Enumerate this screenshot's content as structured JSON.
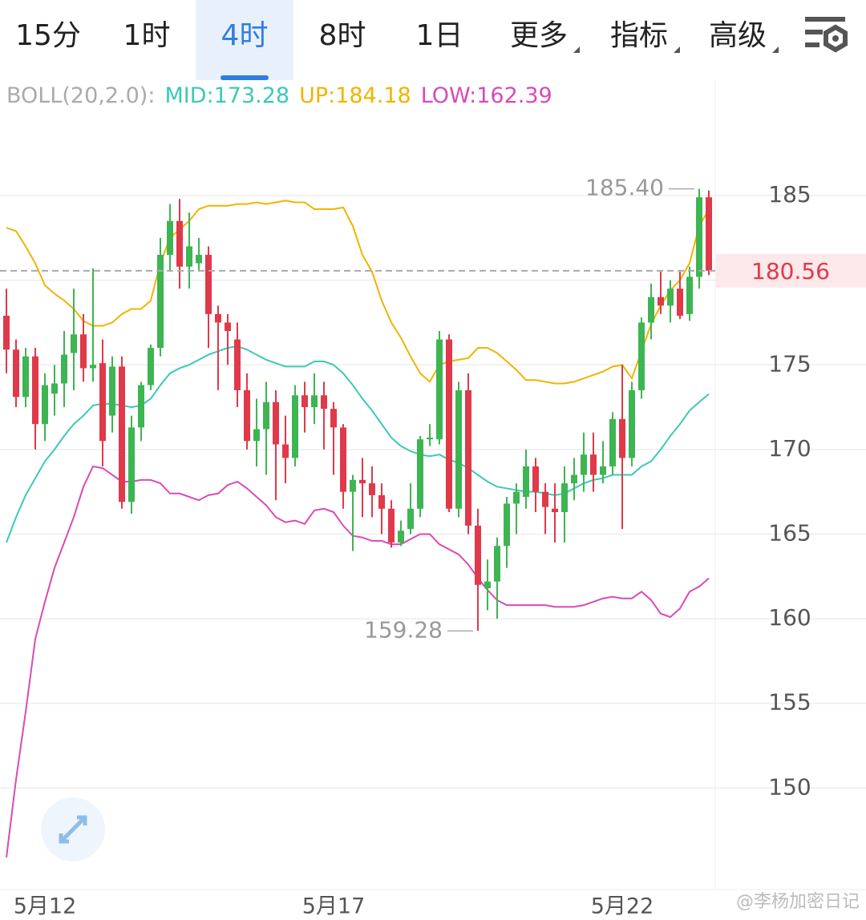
{
  "tabs": {
    "items": [
      "15分",
      "1时",
      "4时",
      "8时",
      "1日",
      "更多",
      "指标",
      "高级"
    ],
    "active": 2
  },
  "chart_data": {
    "type": "candlestick",
    "indicator": "BOLL(20,2.0):",
    "categories": [
      null,
      null,
      null,
      null,
      "5月12",
      null,
      null,
      null,
      null,
      null,
      null,
      null,
      null,
      null,
      null,
      null,
      null,
      null,
      null,
      null,
      null,
      null,
      null,
      null,
      null,
      null,
      null,
      null,
      null,
      null,
      null,
      null,
      null,
      null,
      "5月17",
      null,
      null,
      null,
      null,
      null,
      null,
      null,
      null,
      null,
      null,
      null,
      null,
      null,
      null,
      null,
      null,
      null,
      null,
      null,
      null,
      null,
      null,
      null,
      null,
      null,
      null,
      null,
      null,
      null,
      "5月22",
      null,
      null,
      null,
      null,
      null,
      null,
      null,
      null,
      null
    ],
    "open": [
      177.9,
      175.9,
      173.1,
      175.5,
      171.5,
      173.3,
      173.9,
      175.7,
      176.8,
      174.8,
      175.1,
      172,
      174.9,
      166.9,
      171.3,
      173.8,
      176,
      181.5,
      183.5,
      180.8,
      181,
      181.5,
      178,
      177.5,
      176.5,
      173.5,
      170.5,
      171.2,
      172.8,
      170.3,
      169.5,
      173.2,
      172.5,
      173.2,
      172.4,
      171.3,
      167.5,
      168.2,
      168,
      167.3,
      166.5,
      164.5,
      165.3,
      166.5,
      170.6,
      170.6,
      176.5,
      166.5,
      173.5,
      165.5,
      161.8,
      162.2,
      164.3,
      166.8,
      167.2,
      169,
      167.5,
      166.5,
      166.3,
      168,
      168.5,
      169.7,
      168.5,
      169,
      171.8,
      169.5,
      173.5,
      177.5,
      179,
      178.5,
      179.5,
      178,
      180.2,
      184.9
    ],
    "high": [
      179.5,
      176.5,
      176,
      176,
      174.5,
      175,
      177,
      179.5,
      178,
      180.7,
      176.5,
      175.5,
      175.5,
      172,
      174,
      176.2,
      182.5,
      184.5,
      184.8,
      184,
      182.5,
      182,
      178.5,
      178,
      177.5,
      174.5,
      173,
      174,
      173.5,
      172,
      173.8,
      174,
      174.5,
      174,
      172.8,
      171.5,
      168.5,
      169.5,
      169,
      168,
      167,
      165.8,
      168,
      170.8,
      171.5,
      177,
      176.8,
      174,
      174.5,
      166.5,
      163.5,
      164.8,
      167.2,
      168,
      170,
      169.5,
      168,
      168,
      169,
      169.5,
      171,
      171,
      170.5,
      172.2,
      175,
      174,
      177.8,
      179.8,
      180.5,
      180,
      180.5,
      180.8,
      185.4,
      185.3
    ],
    "low": [
      174.5,
      172.5,
      172.5,
      170,
      170.5,
      172,
      172.5,
      173.5,
      174,
      174,
      169,
      171,
      166.5,
      166.2,
      170.5,
      173.5,
      175.5,
      180.5,
      179.5,
      179.5,
      180.5,
      176,
      173.5,
      175,
      172.5,
      170,
      169,
      168.5,
      167,
      168,
      169,
      171,
      171.5,
      170,
      168.5,
      166.5,
      164,
      166,
      166,
      165,
      164.2,
      164.3,
      165,
      166,
      170.2,
      170.3,
      166.3,
      166,
      165,
      159.28,
      160.5,
      160,
      163,
      165,
      166.5,
      166.3,
      165,
      164.5,
      164.5,
      167,
      167.5,
      167.5,
      168,
      168.5,
      165.3,
      169,
      173,
      176.5,
      178,
      177.5,
      177.7,
      177.6,
      179.5,
      180.3
    ],
    "close": [
      175.9,
      173.1,
      175.5,
      171.5,
      173.8,
      173.9,
      175.6,
      176.8,
      174.8,
      175,
      170.5,
      174.9,
      166.9,
      171.3,
      173.8,
      176,
      181.5,
      183.5,
      180.8,
      182,
      181.5,
      178,
      177.5,
      177,
      173.5,
      170.5,
      171.2,
      172.8,
      170.3,
      169.5,
      173.2,
      172.5,
      173.2,
      172.4,
      171.3,
      167.5,
      168.2,
      168,
      167.3,
      166.5,
      164.5,
      165.2,
      166.5,
      170.6,
      170.7,
      176.5,
      166.5,
      173.5,
      165.5,
      162,
      162.2,
      164.3,
      166.8,
      167.5,
      169,
      167.5,
      166.6,
      166.3,
      168,
      168.5,
      169.7,
      168.5,
      169,
      171.8,
      169.5,
      173.5,
      177.5,
      179,
      178.5,
      179.5,
      177.9,
      180.2,
      184.9,
      180.56
    ],
    "up_color": "#3db552",
    "down_color": "#e0394a",
    "lines": [
      {
        "label": "MID:173.28",
        "color": "#3cc9b4",
        "values": [
          164.5,
          166,
          167.3,
          168.3,
          169.3,
          170,
          170.8,
          171.5,
          172,
          172.6,
          172.7,
          172.7,
          172.6,
          172.5,
          172.6,
          173,
          173.8,
          174.5,
          174.8,
          175,
          175.3,
          175.6,
          175.8,
          176,
          176.1,
          175.9,
          175.6,
          175.3,
          175.1,
          174.9,
          174.9,
          174.9,
          175.2,
          175.2,
          175,
          174.5,
          173.8,
          173,
          172.3,
          171.5,
          170.7,
          170.2,
          169.9,
          169.7,
          169.6,
          169.7,
          169.4,
          169.2,
          168.9,
          168.5,
          168.1,
          167.8,
          167.7,
          167.6,
          167.5,
          167.5,
          167.4,
          167.3,
          167.4,
          167.7,
          168,
          168.2,
          168.3,
          168.5,
          168.5,
          168.5,
          169,
          169.3,
          170,
          170.8,
          171.5,
          172.3,
          172.8,
          173.28
        ]
      },
      {
        "label": "UP:184.18",
        "color": "#f0b400",
        "values": [
          183.1,
          182.9,
          182,
          181,
          179.7,
          179.2,
          178.8,
          178.3,
          177.6,
          177.3,
          177.3,
          177.5,
          178,
          178.3,
          178.3,
          178.8,
          181,
          182.5,
          183,
          183.5,
          184.2,
          184.4,
          184.4,
          184.4,
          184.5,
          184.5,
          184.6,
          184.5,
          184.6,
          184.7,
          184.6,
          184.6,
          184.2,
          184.2,
          184.2,
          184.3,
          183.2,
          181.5,
          180.5,
          178.8,
          177.5,
          176.6,
          175.5,
          174.5,
          174,
          175,
          175.2,
          175.3,
          175.4,
          176,
          176,
          175.7,
          175.2,
          174.7,
          174.1,
          174.1,
          174,
          173.9,
          173.9,
          174,
          174.2,
          174.4,
          174.6,
          174.9,
          175,
          174.2,
          175.8,
          177.4,
          178.5,
          179.4,
          180,
          181,
          183.2,
          184.18
        ]
      },
      {
        "label": "LOW:162.39",
        "color": "#d84ab8",
        "values": [
          145.9,
          150.5,
          154.5,
          158.8,
          161,
          163,
          164.5,
          166,
          167.8,
          169,
          168.9,
          168.5,
          168.1,
          168.1,
          168.2,
          168.2,
          168,
          167.4,
          167.4,
          167.2,
          167,
          167.3,
          167.4,
          167.9,
          168.1,
          167.7,
          167.2,
          166.7,
          166,
          165.7,
          165.8,
          165.6,
          166.4,
          166.5,
          166.3,
          165.5,
          164.9,
          164.8,
          164.6,
          164.6,
          164.4,
          164.4,
          164.7,
          165,
          165,
          164.4,
          164.1,
          163.8,
          163.2,
          162.4,
          161.7,
          161.1,
          160.8,
          160.8,
          160.8,
          160.8,
          160.8,
          160.7,
          160.7,
          160.7,
          160.8,
          161,
          161.2,
          161.3,
          161.2,
          161.2,
          161.6,
          161.1,
          160.3,
          160.1,
          160.6,
          161.6,
          161.9,
          162.39
        ]
      }
    ],
    "ylim": [
      144,
      191.82
    ],
    "yticks": [
      150,
      155,
      160,
      165,
      170,
      175,
      180,
      185
    ],
    "grid": true,
    "last_price": {
      "value": 180.56,
      "label": "180.56"
    },
    "high_marker": {
      "index": 72,
      "value": 185.4,
      "label": "185.40"
    },
    "low_marker": {
      "index": 49,
      "value": 159.28,
      "label": "159.28"
    }
  },
  "watermark": "@李杨加密日记"
}
